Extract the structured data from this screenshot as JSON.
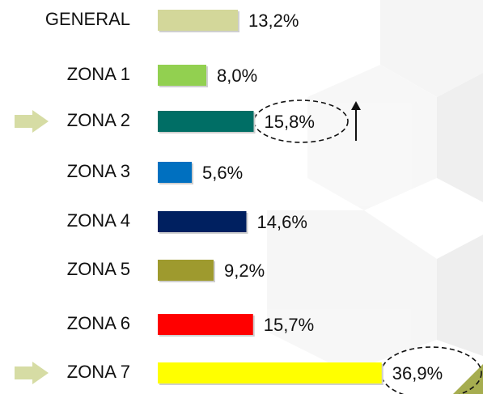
{
  "chart_data": {
    "type": "bar",
    "orientation": "horizontal",
    "categories": [
      "GENERAL",
      "ZONA 1",
      "ZONA 2",
      "ZONA 3",
      "ZONA 4",
      "ZONA 5",
      "ZONA 6",
      "ZONA 7"
    ],
    "values": [
      13.2,
      8.0,
      15.8,
      5.6,
      14.6,
      9.2,
      15.7,
      36.9
    ],
    "value_labels": [
      "13,2%",
      "8,0%",
      "15,8%",
      "5,6%",
      "14,6%",
      "9,2%",
      "15,7%",
      "36,9%"
    ],
    "colors": [
      "#d3d79a",
      "#92d050",
      "#006e65",
      "#0070c0",
      "#002060",
      "#9e9a2e",
      "#ff0000",
      "#ffff00"
    ]
  }
}
